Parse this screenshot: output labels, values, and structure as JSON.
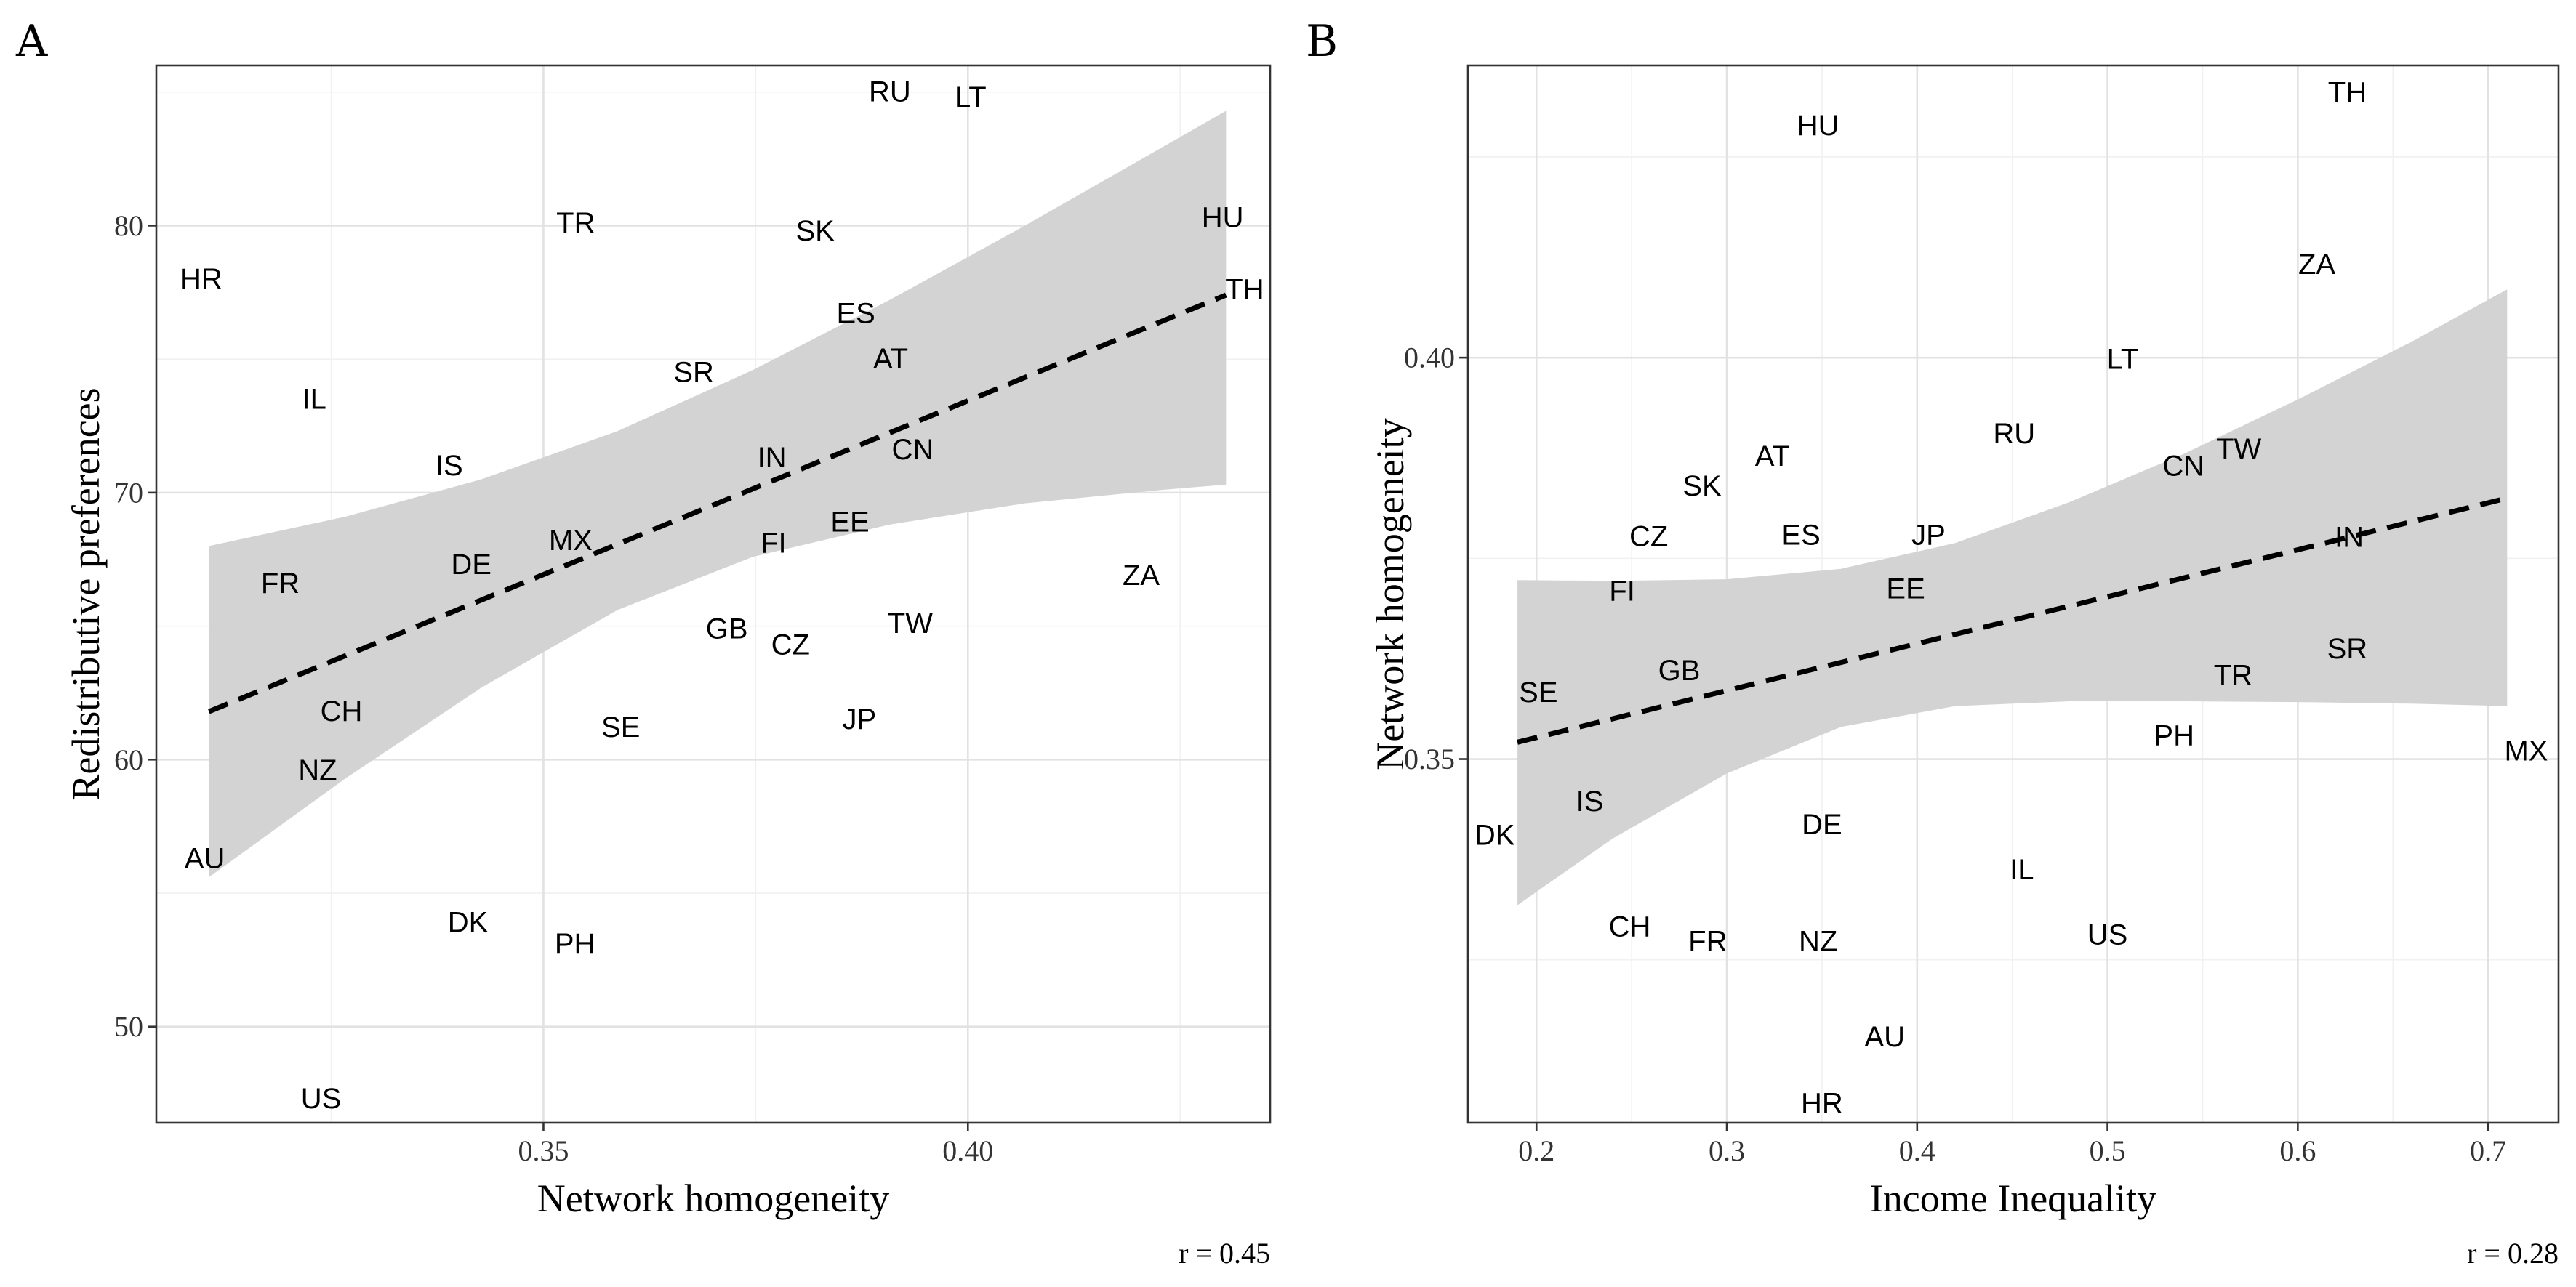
{
  "chart_data": [
    {
      "type": "scatter",
      "panel_label": "A",
      "title": "",
      "xlabel": "Network homogeneity",
      "ylabel": "Redistributive preferences",
      "xlim": [
        0.3044,
        0.4356
      ],
      "ylim": [
        46.4,
        86.0
      ],
      "x_major_ticks": [
        0.35,
        0.4
      ],
      "x_tick_labels": [
        "0.35",
        "0.40"
      ],
      "x_minor_ticks": [
        0.325,
        0.375,
        0.425
      ],
      "y_major_ticks": [
        50,
        60,
        70,
        80
      ],
      "y_tick_labels": [
        "50",
        "60",
        "70",
        "80"
      ],
      "y_minor_ticks": [
        55,
        65,
        75,
        85
      ],
      "points": [
        {
          "label": "HR",
          "x": 0.3097,
          "y": 78.0
        },
        {
          "label": "IL",
          "x": 0.323,
          "y": 73.5
        },
        {
          "label": "IS",
          "x": 0.3389,
          "y": 71.0
        },
        {
          "label": "TR",
          "x": 0.3538,
          "y": 80.1
        },
        {
          "label": "SR",
          "x": 0.3677,
          "y": 74.5
        },
        {
          "label": "SK",
          "x": 0.382,
          "y": 79.8
        },
        {
          "label": "RU",
          "x": 0.3908,
          "y": 85.0
        },
        {
          "label": "LT",
          "x": 0.4003,
          "y": 84.8
        },
        {
          "label": "ES",
          "x": 0.3868,
          "y": 76.7
        },
        {
          "label": "AT",
          "x": 0.3909,
          "y": 75.0
        },
        {
          "label": "IN",
          "x": 0.3769,
          "y": 71.3
        },
        {
          "label": "CN",
          "x": 0.3935,
          "y": 71.6
        },
        {
          "label": "EE",
          "x": 0.3861,
          "y": 68.9
        },
        {
          "label": "FI",
          "x": 0.3771,
          "y": 68.1
        },
        {
          "label": "MX",
          "x": 0.3532,
          "y": 68.2
        },
        {
          "label": "DE",
          "x": 0.3415,
          "y": 67.3
        },
        {
          "label": "FR",
          "x": 0.319,
          "y": 66.6
        },
        {
          "label": "HU",
          "x": 0.43,
          "y": 80.3
        },
        {
          "label": "TH",
          "x": 0.4326,
          "y": 77.6
        },
        {
          "label": "ZA",
          "x": 0.4204,
          "y": 66.9
        },
        {
          "label": "GB",
          "x": 0.3716,
          "y": 64.9
        },
        {
          "label": "CZ",
          "x": 0.3791,
          "y": 64.3
        },
        {
          "label": "TW",
          "x": 0.3932,
          "y": 65.1
        },
        {
          "label": "CH",
          "x": 0.3262,
          "y": 61.8
        },
        {
          "label": "SE",
          "x": 0.3591,
          "y": 61.2
        },
        {
          "label": "JP",
          "x": 0.3872,
          "y": 61.5
        },
        {
          "label": "NZ",
          "x": 0.3234,
          "y": 59.6
        },
        {
          "label": "AU",
          "x": 0.3101,
          "y": 56.3
        },
        {
          "label": "DK",
          "x": 0.3411,
          "y": 53.9
        },
        {
          "label": "PH",
          "x": 0.3537,
          "y": 53.1
        },
        {
          "label": "US",
          "x": 0.3238,
          "y": 47.3
        }
      ],
      "fit_line": {
        "x": [
          0.3106,
          0.4304
        ],
        "y": [
          61.8,
          77.4
        ]
      },
      "confidence_band": {
        "x": [
          0.3106,
          0.3267,
          0.3427,
          0.3587,
          0.3747,
          0.3907,
          0.4067,
          0.4227,
          0.4304
        ],
        "upper": [
          68.0,
          69.1,
          70.5,
          72.3,
          74.6,
          77.2,
          80.0,
          82.9,
          84.3
        ],
        "lower": [
          55.6,
          59.3,
          62.7,
          65.6,
          67.6,
          68.8,
          69.6,
          70.1,
          70.3
        ]
      },
      "r_label": "r =  0.45"
    },
    {
      "type": "scatter",
      "panel_label": "B",
      "title": "",
      "xlabel": "Income Inequality",
      "ylabel": "Network homogeneity",
      "xlim": [
        0.164,
        0.737
      ],
      "ylim": [
        0.3047,
        0.4364
      ],
      "x_major_ticks": [
        0.2,
        0.3,
        0.4,
        0.5,
        0.6,
        0.7
      ],
      "x_tick_labels": [
        "0.2",
        "0.3",
        "0.4",
        "0.5",
        "0.6",
        "0.7"
      ],
      "x_minor_ticks": [
        0.25,
        0.35,
        0.45,
        0.55,
        0.65
      ],
      "y_major_ticks": [
        0.35,
        0.4
      ],
      "y_tick_labels": [
        "0.35",
        "0.40"
      ],
      "y_minor_ticks": [
        0.325,
        0.375,
        0.425
      ],
      "points": [
        {
          "label": "HU",
          "x": 0.348,
          "y": 0.4289
        },
        {
          "label": "TH",
          "x": 0.626,
          "y": 0.433
        },
        {
          "label": "ZA",
          "x": 0.61,
          "y": 0.4116
        },
        {
          "label": "LT",
          "x": 0.508,
          "y": 0.3998
        },
        {
          "label": "RU",
          "x": 0.451,
          "y": 0.3905
        },
        {
          "label": "AT",
          "x": 0.324,
          "y": 0.3877
        },
        {
          "label": "SK",
          "x": 0.287,
          "y": 0.384
        },
        {
          "label": "CN",
          "x": 0.54,
          "y": 0.3865
        },
        {
          "label": "TW",
          "x": 0.569,
          "y": 0.3886
        },
        {
          "label": "CZ",
          "x": 0.259,
          "y": 0.3777
        },
        {
          "label": "ES",
          "x": 0.339,
          "y": 0.3779
        },
        {
          "label": "JP",
          "x": 0.406,
          "y": 0.3779
        },
        {
          "label": "IN",
          "x": 0.627,
          "y": 0.3776
        },
        {
          "label": "FI",
          "x": 0.245,
          "y": 0.3709
        },
        {
          "label": "EE",
          "x": 0.394,
          "y": 0.3712
        },
        {
          "label": "SE",
          "x": 0.201,
          "y": 0.3583
        },
        {
          "label": "GB",
          "x": 0.275,
          "y": 0.361
        },
        {
          "label": "SR",
          "x": 0.626,
          "y": 0.3637
        },
        {
          "label": "TR",
          "x": 0.566,
          "y": 0.3604
        },
        {
          "label": "PH",
          "x": 0.535,
          "y": 0.3529
        },
        {
          "label": "MX",
          "x": 0.72,
          "y": 0.351
        },
        {
          "label": "IS",
          "x": 0.228,
          "y": 0.3447
        },
        {
          "label": "DK",
          "x": 0.178,
          "y": 0.3405
        },
        {
          "label": "DE",
          "x": 0.35,
          "y": 0.3418
        },
        {
          "label": "IL",
          "x": 0.455,
          "y": 0.3362
        },
        {
          "label": "CH",
          "x": 0.249,
          "y": 0.3291
        },
        {
          "label": "FR",
          "x": 0.29,
          "y": 0.3273
        },
        {
          "label": "NZ",
          "x": 0.348,
          "y": 0.3273
        },
        {
          "label": "US",
          "x": 0.5,
          "y": 0.3281
        },
        {
          "label": "AU",
          "x": 0.383,
          "y": 0.3154
        },
        {
          "label": "HR",
          "x": 0.35,
          "y": 0.3071
        }
      ],
      "fit_line": {
        "x": [
          0.19,
          0.71
        ],
        "y": [
          0.3521,
          0.3825
        ]
      },
      "confidence_band": {
        "x": [
          0.19,
          0.24,
          0.3,
          0.36,
          0.42,
          0.48,
          0.54,
          0.6,
          0.66,
          0.71
        ],
        "upper": [
          0.3723,
          0.3722,
          0.3724,
          0.3737,
          0.3769,
          0.382,
          0.388,
          0.3948,
          0.402,
          0.4085
        ],
        "lower": [
          0.3318,
          0.3401,
          0.3482,
          0.354,
          0.3566,
          0.3572,
          0.3572,
          0.3571,
          0.3569,
          0.3566
        ]
      },
      "r_label": "r =  0.28"
    }
  ]
}
